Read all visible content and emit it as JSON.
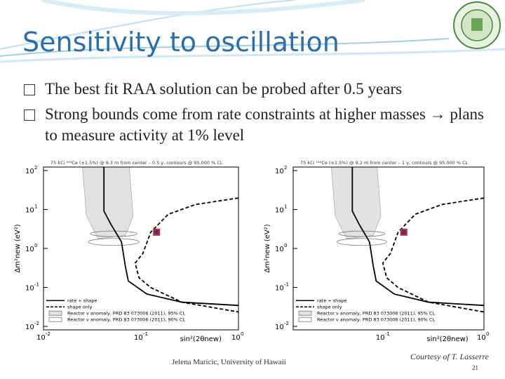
{
  "header": {
    "title": "Sensitivity to oscillation"
  },
  "bullets": [
    "The best fit RAA solution can be probed after 0.5 years",
    "Strong bounds come from rate constraints at higher masses → plans to measure activity at 1% level"
  ],
  "plots": [
    {
      "header": "75 kCi ¹⁴⁴Ce (±1.5%) @ 9.3 m from center – 0.5 y, contours @ 95.000 % CL",
      "y_label": "Δm²new (eV²)",
      "x_label": "sin²(2θnew)",
      "yticks": [
        {
          "base": "10",
          "exp": "2"
        },
        {
          "base": "10",
          "exp": "1"
        },
        {
          "base": "10",
          "exp": "0"
        },
        {
          "base": "10",
          "exp": "-1"
        },
        {
          "base": "10",
          "exp": "-2"
        }
      ],
      "xticks": [
        {
          "base": "10",
          "exp": "-2"
        },
        {
          "base": "10",
          "exp": "-1"
        },
        {
          "base": "10",
          "exp": "0"
        }
      ],
      "legend": [
        "rate + shape",
        "shape only",
        "Reactor ν anomaly, PRD 83 073006 (2011), 95% CL",
        "Reactor ν anomaly, PRD 83 073006 (2011), 90% CL"
      ]
    },
    {
      "header": "75 kCi ¹⁴⁴Ce (±1.5%) @ 9.2 m from center – 1 y, contours @ 95.000 % CL",
      "y_label": "Δm²new (eV²)",
      "x_label": "sin²(2θnew)",
      "yticks": [
        {
          "base": "10",
          "exp": "2"
        },
        {
          "base": "10",
          "exp": "1"
        },
        {
          "base": "10",
          "exp": "0"
        },
        {
          "base": "10",
          "exp": "-1"
        },
        {
          "base": "10",
          "exp": "-2"
        }
      ],
      "xticks": [
        {
          "base": "10",
          "exp": "-1"
        },
        {
          "base": "10",
          "exp": "0"
        }
      ],
      "legend": [
        "rate + shape",
        "shape only",
        "Reactor ν anomaly, PRD 83 073006 (2011), 95% CL",
        "Reactor ν anomaly, PRD 83 073006 (2011), 90% CL"
      ]
    }
  ],
  "footer": {
    "author": "Jelena Maricic, University of Hawaii",
    "credit": "Courtesy of T. Lasserre",
    "page": "21"
  }
}
